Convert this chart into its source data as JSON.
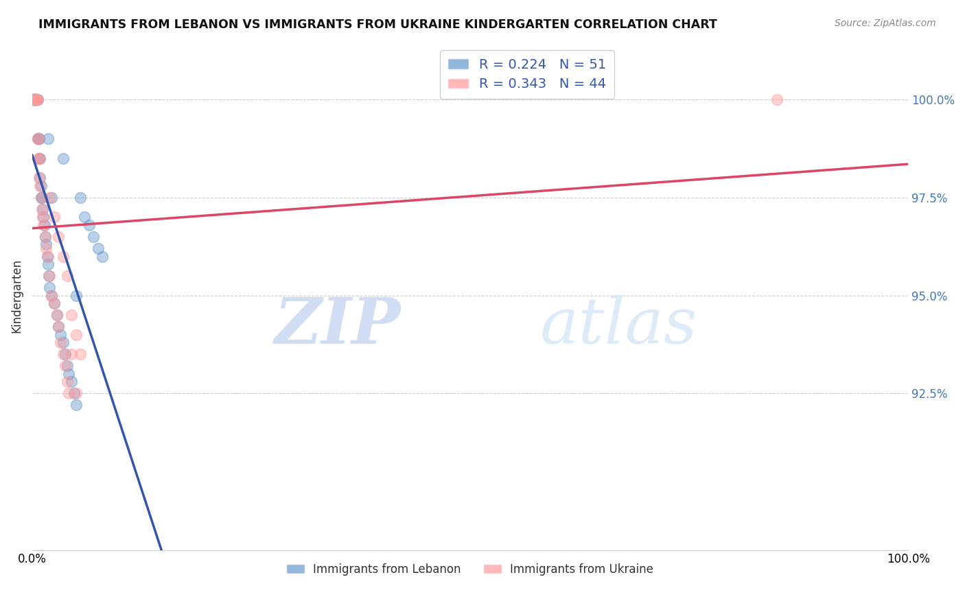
{
  "title": "IMMIGRANTS FROM LEBANON VS IMMIGRANTS FROM UKRAINE KINDERGARTEN CORRELATION CHART",
  "source": "Source: ZipAtlas.com",
  "ylabel": "Kindergarten",
  "xlim": [
    0.0,
    1.0
  ],
  "ylim": [
    0.885,
    1.015
  ],
  "legend_label1": "Immigrants from Lebanon",
  "legend_label2": "Immigrants from Ukraine",
  "R1": 0.224,
  "N1": 51,
  "R2": 0.343,
  "N2": 44,
  "color1": "#6699CC",
  "color2": "#FF9999",
  "trendline1_color": "#3355AA",
  "trendline2_color": "#DD4466",
  "lebanon_x": [
    0.001,
    0.002,
    0.002,
    0.003,
    0.003,
    0.004,
    0.004,
    0.005,
    0.005,
    0.006,
    0.006,
    0.007,
    0.007,
    0.008,
    0.008,
    0.009,
    0.009,
    0.01,
    0.01,
    0.011,
    0.012,
    0.013,
    0.014,
    0.015,
    0.016,
    0.017,
    0.018,
    0.019,
    0.02,
    0.022,
    0.025,
    0.028,
    0.03,
    0.032,
    0.035,
    0.038,
    0.04,
    0.042,
    0.045,
    0.048,
    0.05,
    0.055,
    0.06,
    0.065,
    0.07,
    0.075,
    0.08,
    0.035,
    0.018,
    0.022,
    0.05
  ],
  "lebanon_y": [
    1.0,
    1.0,
    1.0,
    1.0,
    1.0,
    1.0,
    1.0,
    1.0,
    1.0,
    1.0,
    0.99,
    0.99,
    0.99,
    0.99,
    0.985,
    0.985,
    0.98,
    0.978,
    0.975,
    0.975,
    0.972,
    0.97,
    0.968,
    0.965,
    0.963,
    0.96,
    0.958,
    0.955,
    0.952,
    0.95,
    0.948,
    0.945,
    0.942,
    0.94,
    0.938,
    0.935,
    0.932,
    0.93,
    0.928,
    0.925,
    0.922,
    0.975,
    0.97,
    0.968,
    0.965,
    0.962,
    0.96,
    0.985,
    0.99,
    0.975,
    0.95
  ],
  "ukraine_x": [
    0.001,
    0.002,
    0.002,
    0.003,
    0.003,
    0.004,
    0.004,
    0.005,
    0.005,
    0.006,
    0.006,
    0.007,
    0.007,
    0.008,
    0.008,
    0.009,
    0.01,
    0.011,
    0.012,
    0.013,
    0.015,
    0.016,
    0.018,
    0.02,
    0.022,
    0.025,
    0.028,
    0.03,
    0.032,
    0.035,
    0.038,
    0.04,
    0.042,
    0.045,
    0.05,
    0.055,
    0.02,
    0.025,
    0.03,
    0.035,
    0.04,
    0.045,
    0.05,
    0.85
  ],
  "ukraine_y": [
    1.0,
    1.0,
    1.0,
    1.0,
    1.0,
    1.0,
    1.0,
    1.0,
    1.0,
    1.0,
    0.99,
    0.99,
    0.985,
    0.985,
    0.98,
    0.978,
    0.975,
    0.972,
    0.97,
    0.968,
    0.965,
    0.962,
    0.96,
    0.955,
    0.95,
    0.948,
    0.945,
    0.942,
    0.938,
    0.935,
    0.932,
    0.928,
    0.925,
    0.945,
    0.94,
    0.935,
    0.975,
    0.97,
    0.965,
    0.96,
    0.955,
    0.935,
    0.925,
    1.0
  ],
  "watermark_zip": "ZIP",
  "watermark_atlas": "atlas",
  "background_color": "#ffffff",
  "ytick_vals": [
    0.925,
    0.95,
    0.975,
    1.0
  ],
  "ytick_labels": [
    "92.5%",
    "95.0%",
    "97.5%",
    "100.0%"
  ]
}
